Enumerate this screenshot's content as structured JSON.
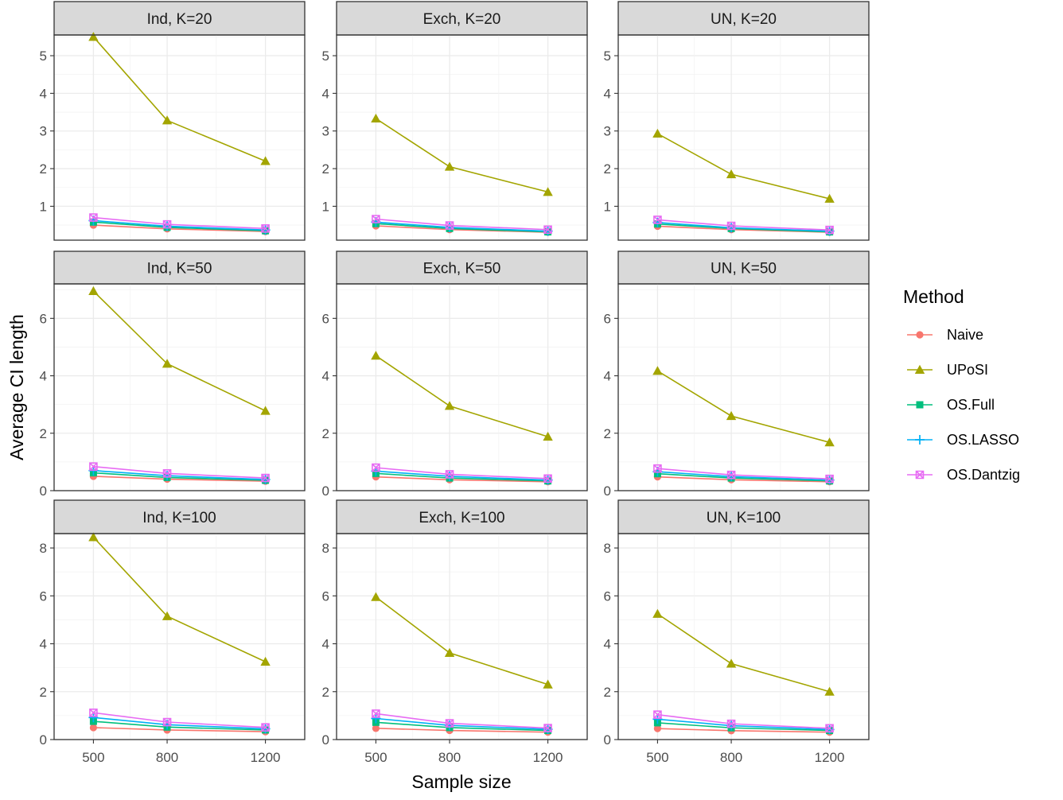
{
  "chart_data": {
    "type": "line",
    "xlabel": "Sample size",
    "ylabel": "Average CI length",
    "x": [
      500,
      800,
      1200
    ],
    "x_tick_labels": [
      "500",
      "800",
      "1200"
    ],
    "legend": {
      "title": "Method",
      "position": "right",
      "entries": [
        {
          "name": "Naive",
          "color": "#F8766D",
          "marker": "circle"
        },
        {
          "name": "UPoSI",
          "color": "#A3A500",
          "marker": "triangle"
        },
        {
          "name": "OS.Full",
          "color": "#00BF7D",
          "marker": "square"
        },
        {
          "name": "OS.LASSO",
          "color": "#00B0F6",
          "marker": "plus"
        },
        {
          "name": "OS.Dantzig",
          "color": "#E76BF3",
          "marker": "square-cross"
        }
      ]
    },
    "rows": [
      {
        "ylim": [
          0.1,
          5.55
        ],
        "y_ticks": [
          1,
          2,
          3,
          4,
          5
        ],
        "panels": [
          {
            "title": "Ind, K=20",
            "series": {
              "Naive": [
                0.5,
                0.4,
                0.33
              ],
              "UPoSI": [
                5.5,
                3.28,
                2.2
              ],
              "OS.Full": [
                0.58,
                0.44,
                0.35
              ],
              "OS.LASSO": [
                0.62,
                0.47,
                0.37
              ],
              "OS.Dantzig": [
                0.7,
                0.52,
                0.41
              ]
            }
          },
          {
            "title": "Exch, K=20",
            "series": {
              "Naive": [
                0.48,
                0.38,
                0.31
              ],
              "UPoSI": [
                3.33,
                2.05,
                1.38
              ],
              "OS.Full": [
                0.54,
                0.41,
                0.32
              ],
              "OS.LASSO": [
                0.58,
                0.44,
                0.34
              ],
              "OS.Dantzig": [
                0.66,
                0.49,
                0.38
              ]
            }
          },
          {
            "title": "UN, K=20",
            "series": {
              "Naive": [
                0.47,
                0.38,
                0.31
              ],
              "UPoSI": [
                2.93,
                1.85,
                1.2
              ],
              "OS.Full": [
                0.53,
                0.41,
                0.32
              ],
              "OS.LASSO": [
                0.57,
                0.43,
                0.34
              ],
              "OS.Dantzig": [
                0.64,
                0.48,
                0.37
              ]
            }
          }
        ]
      },
      {
        "ylim": [
          0,
          7.2
        ],
        "y_ticks": [
          0,
          2,
          4,
          6
        ],
        "panels": [
          {
            "title": "Ind, K=50",
            "series": {
              "Naive": [
                0.5,
                0.4,
                0.33
              ],
              "UPoSI": [
                6.95,
                4.42,
                2.78
              ],
              "OS.Full": [
                0.62,
                0.46,
                0.36
              ],
              "OS.LASSO": [
                0.7,
                0.52,
                0.39
              ],
              "OS.Dantzig": [
                0.84,
                0.6,
                0.44
              ]
            }
          },
          {
            "title": "Exch, K=50",
            "series": {
              "Naive": [
                0.48,
                0.38,
                0.31
              ],
              "UPoSI": [
                4.7,
                2.95,
                1.88
              ],
              "OS.Full": [
                0.6,
                0.44,
                0.34
              ],
              "OS.LASSO": [
                0.68,
                0.5,
                0.37
              ],
              "OS.Dantzig": [
                0.8,
                0.57,
                0.42
              ]
            }
          },
          {
            "title": "UN, K=50",
            "series": {
              "Naive": [
                0.48,
                0.38,
                0.31
              ],
              "UPoSI": [
                4.17,
                2.6,
                1.68
              ],
              "OS.Full": [
                0.59,
                0.44,
                0.34
              ],
              "OS.LASSO": [
                0.66,
                0.49,
                0.37
              ],
              "OS.Dantzig": [
                0.77,
                0.55,
                0.41
              ]
            }
          }
        ]
      },
      {
        "ylim": [
          0,
          8.6
        ],
        "y_ticks": [
          0,
          2,
          4,
          6,
          8
        ],
        "panels": [
          {
            "title": "Ind, K=100",
            "series": {
              "Naive": [
                0.5,
                0.4,
                0.33
              ],
              "UPoSI": [
                8.45,
                5.15,
                3.25
              ],
              "OS.Full": [
                0.76,
                0.52,
                0.4
              ],
              "OS.LASSO": [
                0.92,
                0.62,
                0.45
              ],
              "OS.Dantzig": [
                1.12,
                0.73,
                0.51
              ]
            }
          },
          {
            "title": "Exch, K=100",
            "series": {
              "Naive": [
                0.47,
                0.38,
                0.31
              ],
              "UPoSI": [
                5.95,
                3.62,
                2.3
              ],
              "OS.Full": [
                0.72,
                0.5,
                0.38
              ],
              "OS.LASSO": [
                0.88,
                0.59,
                0.43
              ],
              "OS.Dantzig": [
                1.08,
                0.68,
                0.48
              ]
            }
          },
          {
            "title": "UN, K=100",
            "series": {
              "Naive": [
                0.46,
                0.37,
                0.31
              ],
              "UPoSI": [
                5.25,
                3.17,
                2.0
              ],
              "OS.Full": [
                0.7,
                0.49,
                0.38
              ],
              "OS.LASSO": [
                0.85,
                0.58,
                0.42
              ],
              "OS.Dantzig": [
                1.04,
                0.66,
                0.47
              ]
            }
          }
        ]
      }
    ]
  }
}
